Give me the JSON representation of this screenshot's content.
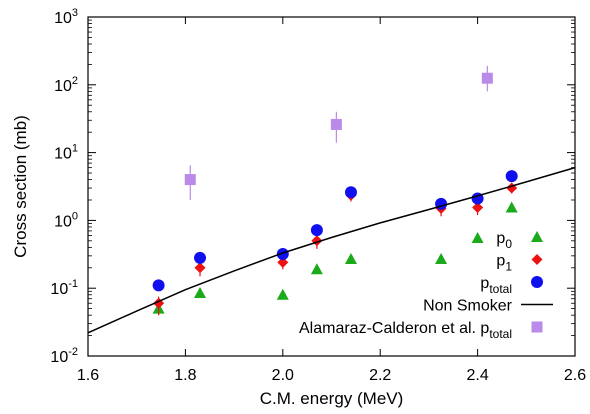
{
  "chart_data": {
    "type": "scatter",
    "xlabel": "C.M. energy (MeV)",
    "ylabel": "Cross section (mb)",
    "xlim": [
      1.6,
      2.6
    ],
    "ylim": [
      0.01,
      1000
    ],
    "yscale": "log",
    "x_ticks": [
      1.6,
      1.8,
      2.0,
      2.2,
      2.4,
      2.6
    ],
    "x_tick_labels": [
      "1.6",
      "1.8",
      "2.0",
      "2.2",
      "2.4",
      "2.6"
    ],
    "y_tick_base": "10",
    "y_ticks": [
      0.01,
      0.1,
      1,
      10,
      100,
      1000
    ],
    "y_tick_exponents": [
      "-2",
      "-1",
      "0",
      "1",
      "2",
      "3"
    ],
    "legend_position": "bottom-right",
    "series": [
      {
        "name": "p0",
        "label_base": "p",
        "label_sub": "0",
        "marker": "triangle",
        "color": "#1aaa1a",
        "points": [
          {
            "x": 1.745,
            "y": 0.05,
            "err": [
              0.04,
              0.065
            ]
          },
          {
            "x": 1.83,
            "y": 0.085
          },
          {
            "x": 2.0,
            "y": 0.08
          },
          {
            "x": 2.07,
            "y": 0.19
          },
          {
            "x": 2.14,
            "y": 0.27
          },
          {
            "x": 2.325,
            "y": 0.27
          },
          {
            "x": 2.4,
            "y": 0.55
          },
          {
            "x": 2.47,
            "y": 1.55
          }
        ]
      },
      {
        "name": "p1",
        "label_base": "p",
        "label_sub": "1",
        "marker": "diamond",
        "color": "#ee1111",
        "points": [
          {
            "x": 1.745,
            "y": 0.06,
            "err": [
              0.04,
              0.075
            ]
          },
          {
            "x": 1.83,
            "y": 0.2,
            "err": [
              0.15,
              0.25
            ]
          },
          {
            "x": 2.0,
            "y": 0.24,
            "err": [
              0.19,
              0.29
            ]
          },
          {
            "x": 2.07,
            "y": 0.5,
            "err": [
              0.38,
              0.6
            ]
          },
          {
            "x": 2.14,
            "y": 2.35,
            "err": [
              1.9,
              2.8
            ]
          },
          {
            "x": 2.325,
            "y": 1.5,
            "err": [
              1.15,
              1.85
            ]
          },
          {
            "x": 2.4,
            "y": 1.55,
            "err": [
              1.2,
              1.9
            ]
          },
          {
            "x": 2.47,
            "y": 3.0,
            "err": [
              2.5,
              3.6
            ]
          }
        ]
      },
      {
        "name": "ptotal",
        "label_base": "p",
        "label_sub": "total",
        "marker": "circle",
        "color": "#1010ee",
        "points": [
          {
            "x": 1.745,
            "y": 0.11
          },
          {
            "x": 1.83,
            "y": 0.28
          },
          {
            "x": 2.0,
            "y": 0.32
          },
          {
            "x": 2.07,
            "y": 0.72
          },
          {
            "x": 2.14,
            "y": 2.6
          },
          {
            "x": 2.325,
            "y": 1.75
          },
          {
            "x": 2.4,
            "y": 2.1
          },
          {
            "x": 2.47,
            "y": 4.5
          }
        ]
      },
      {
        "name": "Alamaraz-Calderon et al. ptotal",
        "label_base": "Alamaraz-Calderon et al. p",
        "label_sub": "total",
        "marker": "square",
        "color": "#b98ae8",
        "points": [
          {
            "x": 1.81,
            "y": 4.0,
            "err": [
              2.0,
              6.5
            ]
          },
          {
            "x": 2.11,
            "y": 26,
            "err": [
              14,
              40
            ]
          },
          {
            "x": 2.42,
            "y": 125,
            "err": [
              80,
              190
            ]
          }
        ]
      },
      {
        "name": "Non Smoker",
        "label_base": "Non Smoker",
        "label_sub": "",
        "marker": "line",
        "color": "#000000",
        "points": [
          {
            "x": 1.6,
            "y": 0.022
          },
          {
            "x": 1.7,
            "y": 0.046
          },
          {
            "x": 1.8,
            "y": 0.095
          },
          {
            "x": 1.9,
            "y": 0.18
          },
          {
            "x": 2.0,
            "y": 0.33
          },
          {
            "x": 2.1,
            "y": 0.56
          },
          {
            "x": 2.2,
            "y": 0.92
          },
          {
            "x": 2.3,
            "y": 1.45
          },
          {
            "x": 2.4,
            "y": 2.3
          },
          {
            "x": 2.5,
            "y": 3.7
          },
          {
            "x": 2.6,
            "y": 6.0
          }
        ]
      }
    ],
    "legend_order": [
      0,
      1,
      2,
      4,
      3
    ]
  }
}
